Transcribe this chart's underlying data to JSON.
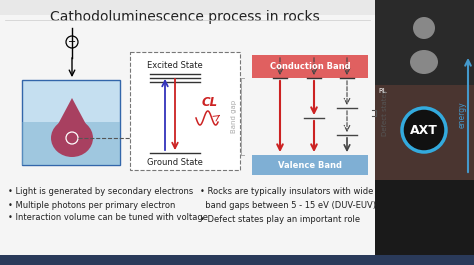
{
  "title": "Cathodoluminescence process in rocks",
  "title_fontsize": 10.5,
  "bg_color": "#e8e8e8",
  "slide_bg": "#f5f5f5",
  "bullet_left": [
    "• Light is generated by secondary electrons",
    "• Multiple photons per primary electron",
    "• Interaction volume can be tuned with voltage"
  ],
  "bullet_right_1": "• Rocks are typically insulators with wide",
  "bullet_right_2": "  band gaps between 5 - 15 eV (DUV-EUV)",
  "bullet_right_3": "• Defect states play an important role",
  "conduction_band_color": "#e06060",
  "valence_band_color": "#7fafd4",
  "band_label_color": "#ffffff",
  "arrow_red": "#cc2222",
  "arrow_dark": "#333333",
  "cl_color": "#cc2222",
  "box_dashed_color": "#777777",
  "sample_box_color_top": "#c5dff0",
  "sample_box_color_bot": "#7ab0d0",
  "droplet_color": "#a84060",
  "energy_label_color": "#4499cc",
  "axt_circle_color": "#33aadd",
  "panel_bg": "#1a1a1a",
  "text_color": "#222222",
  "band_gap_color": "#aaaaaa",
  "fs": 6.0,
  "fs_title": 10.0
}
